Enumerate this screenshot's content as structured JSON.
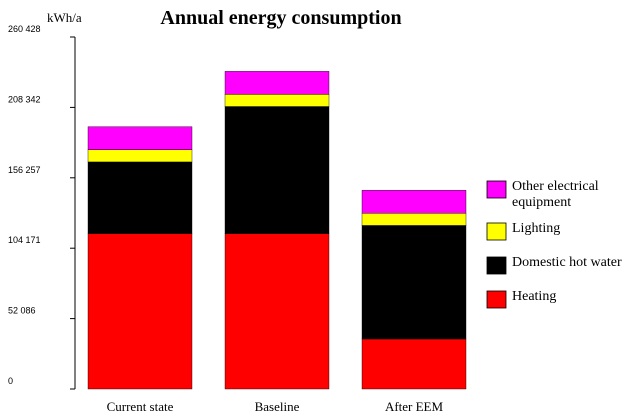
{
  "chart_data": {
    "type": "bar",
    "stacked": true,
    "title": "Annual energy consumption",
    "ylabel": "kWh/a",
    "xlabel": "",
    "ylim": [
      0,
      260428
    ],
    "yticks": [
      0,
      52086,
      104171,
      156257,
      208342,
      260428
    ],
    "ytick_labels": [
      "0",
      "52 086",
      "104 171",
      "156 257",
      "208 342",
      "260 428"
    ],
    "categories": [
      "Current state",
      "Baseline",
      "After EEM"
    ],
    "series": [
      {
        "name": "Heating",
        "color": "#ff0000",
        "values": [
          115000,
          115000,
          37000
        ]
      },
      {
        "name": "Domestic hot water",
        "color": "#000000",
        "values": [
          53000,
          94000,
          84000
        ]
      },
      {
        "name": "Lighting",
        "color": "#ffff00",
        "values": [
          9000,
          9000,
          9000
        ]
      },
      {
        "name": "Other electrical equipment",
        "color": "#ff00ff",
        "values": [
          17000,
          17000,
          17000
        ]
      }
    ],
    "legend": {
      "placement": "right",
      "entries": [
        "Other electrical\nequipment",
        "Lighting",
        "Domestic hot water",
        "Heating"
      ]
    },
    "grid": false
  }
}
